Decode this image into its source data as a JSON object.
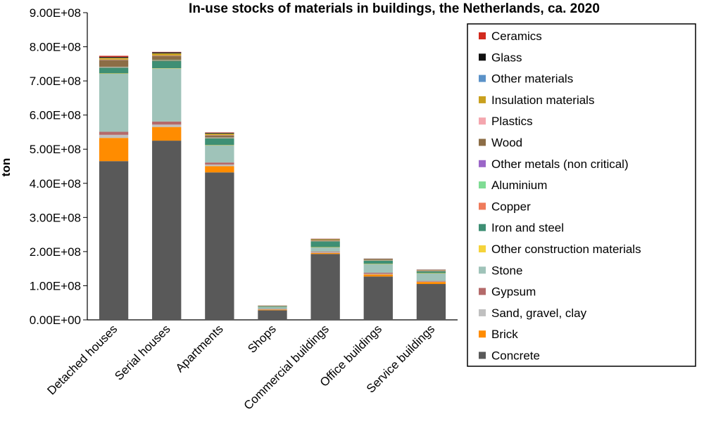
{
  "chart_data": {
    "type": "bar",
    "stacked": true,
    "title": "In-use stocks of materials in buildings, the Netherlands, ca. 2020",
    "ylabel": "ton",
    "xlabel": "",
    "ylim": [
      0,
      900000000
    ],
    "yticks": [
      0,
      100000000,
      200000000,
      300000000,
      400000000,
      500000000,
      600000000,
      700000000,
      800000000,
      900000000
    ],
    "ytick_labels": [
      "0.00E+00",
      "1.00E+08",
      "2.00E+08",
      "3.00E+08",
      "4.00E+08",
      "5.00E+08",
      "6.00E+08",
      "7.00E+08",
      "8.00E+08",
      "9.00E+08"
    ],
    "categories": [
      "Detached houses",
      "Serial houses",
      "Apartments",
      "Shops",
      "Commercial buildings",
      "Office buildings",
      "Service buildings"
    ],
    "grid": false,
    "legend_position": "right",
    "series": [
      {
        "name": "Concrete",
        "color": "#595959",
        "values": [
          465000000,
          525000000,
          432000000,
          28000000,
          193000000,
          127000000,
          105000000
        ]
      },
      {
        "name": "Brick",
        "color": "#ff8c00",
        "values": [
          68000000,
          40000000,
          18000000,
          2000000,
          3000000,
          6000000,
          6000000
        ]
      },
      {
        "name": "Sand, gravel, clay",
        "color": "#c0c0c0",
        "values": [
          9000000,
          7000000,
          5000000,
          1000000,
          2000000,
          2000000,
          1000000
        ]
      },
      {
        "name": "Gypsum",
        "color": "#b46a6a",
        "values": [
          9000000,
          9000000,
          6000000,
          1000000,
          2000000,
          3000000,
          2000000
        ]
      },
      {
        "name": "Stone",
        "color": "#9fc3b9",
        "values": [
          170000000,
          155000000,
          50000000,
          5000000,
          12000000,
          25000000,
          22000000
        ]
      },
      {
        "name": "Other construction materials",
        "color": "#f5d33b",
        "values": [
          1000000,
          1000000,
          1000000,
          500000,
          1000000,
          1000000,
          1000000
        ]
      },
      {
        "name": "Iron and steel",
        "color": "#3e8f74",
        "values": [
          17000000,
          22000000,
          20000000,
          2000000,
          17000000,
          9000000,
          5000000
        ]
      },
      {
        "name": "Copper",
        "color": "#ef7b5b",
        "values": [
          1000000,
          1000000,
          1000000,
          200000,
          500000,
          500000,
          500000
        ]
      },
      {
        "name": "Aluminium",
        "color": "#7fdc94",
        "values": [
          1000000,
          1000000,
          1000000,
          200000,
          500000,
          500000,
          500000
        ]
      },
      {
        "name": "Other metals (non critical)",
        "color": "#9b66c8",
        "values": [
          500000,
          500000,
          500000,
          100000,
          300000,
          300000,
          300000
        ]
      },
      {
        "name": "Wood",
        "color": "#8c6d46",
        "values": [
          20000000,
          12000000,
          6000000,
          1000000,
          2000000,
          2000000,
          2000000
        ]
      },
      {
        "name": "Plastics",
        "color": "#f4a6ae",
        "values": [
          1000000,
          1000000,
          1000000,
          200000,
          500000,
          500000,
          500000
        ]
      },
      {
        "name": "Insulation materials",
        "color": "#c9a01e",
        "values": [
          5000000,
          6000000,
          4000000,
          500000,
          2000000,
          1000000,
          500000
        ]
      },
      {
        "name": "Other materials",
        "color": "#5b92c8",
        "values": [
          500000,
          500000,
          500000,
          100000,
          300000,
          300000,
          300000
        ]
      },
      {
        "name": "Glass",
        "color": "#111111",
        "values": [
          2500000,
          3000000,
          2000000,
          300000,
          1000000,
          1000000,
          500000
        ]
      },
      {
        "name": "Ceramics",
        "color": "#d22a1e",
        "values": [
          3000000,
          1000000,
          1000000,
          100000,
          500000,
          300000,
          300000
        ]
      }
    ],
    "legend_order": [
      "Ceramics",
      "Glass",
      "Other materials",
      "Insulation materials",
      "Plastics",
      "Wood",
      "Other metals (non critical)",
      "Aluminium",
      "Copper",
      "Iron and steel",
      "Other construction materials",
      "Stone",
      "Gypsum",
      "Sand, gravel, clay",
      "Brick",
      "Concrete"
    ]
  }
}
